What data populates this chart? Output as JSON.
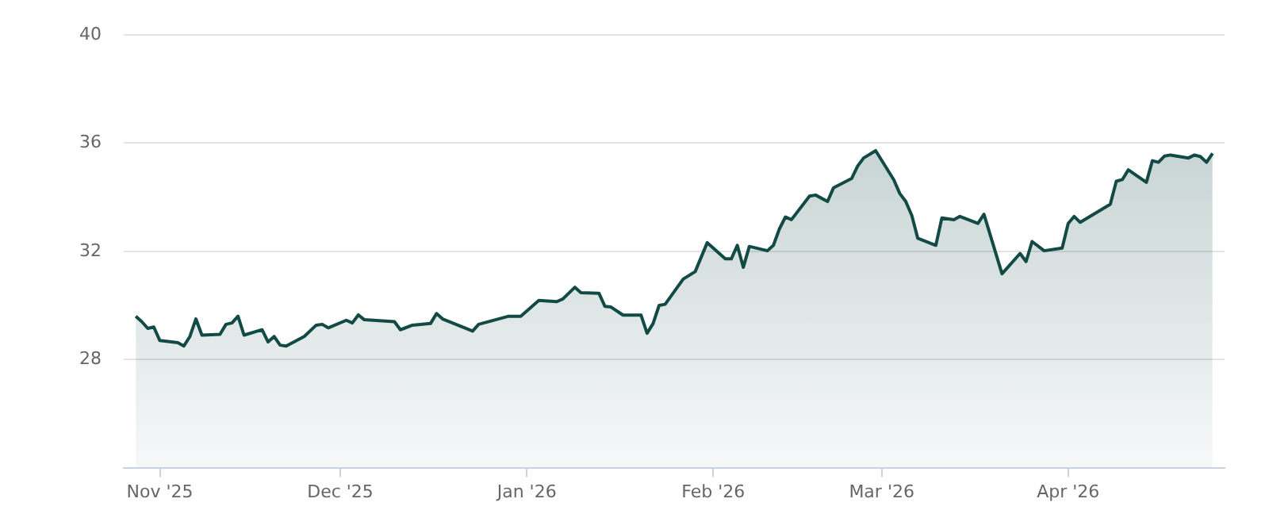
{
  "chart_data": {
    "type": "area",
    "x": [
      "2025-10-28",
      "2025-10-29",
      "2025-10-30",
      "2025-10-31",
      "2025-11-01",
      "2025-11-04",
      "2025-11-05",
      "2025-11-06",
      "2025-11-07",
      "2025-11-08",
      "2025-11-11",
      "2025-11-12",
      "2025-11-13",
      "2025-11-14",
      "2025-11-15",
      "2025-11-18",
      "2025-11-19",
      "2025-11-20",
      "2025-11-21",
      "2025-11-22",
      "2025-11-25",
      "2025-11-27",
      "2025-11-28",
      "2025-11-29",
      "2025-12-02",
      "2025-12-03",
      "2025-12-04",
      "2025-12-05",
      "2025-12-10",
      "2025-12-11",
      "2025-12-13",
      "2025-12-16",
      "2025-12-17",
      "2025-12-18",
      "2025-12-23",
      "2025-12-24",
      "2025-12-29",
      "2025-12-31",
      "2026-01-03",
      "2026-01-06",
      "2026-01-07",
      "2026-01-09",
      "2026-01-10",
      "2026-01-13",
      "2026-01-14",
      "2026-01-15",
      "2026-01-17",
      "2026-01-20",
      "2026-01-21",
      "2026-01-22",
      "2026-01-23",
      "2026-01-24",
      "2026-01-27",
      "2026-01-29",
      "2026-01-31",
      "2026-02-03",
      "2026-02-04",
      "2026-02-05",
      "2026-02-06",
      "2026-02-07",
      "2026-02-10",
      "2026-02-11",
      "2026-02-12",
      "2026-02-13",
      "2026-02-14",
      "2026-02-17",
      "2026-02-18",
      "2026-02-20",
      "2026-02-21",
      "2026-02-24",
      "2026-02-25",
      "2026-02-26",
      "2026-02-28",
      "2026-03-03",
      "2026-03-04",
      "2026-03-05",
      "2026-03-06",
      "2026-03-07",
      "2026-03-10",
      "2026-03-11",
      "2026-03-13",
      "2026-03-14",
      "2026-03-17",
      "2026-03-18",
      "2026-03-21",
      "2026-03-24",
      "2026-03-25",
      "2026-03-26",
      "2026-03-28",
      "2026-03-31",
      "2026-04-01",
      "2026-04-02",
      "2026-04-03",
      "2026-04-08",
      "2026-04-09",
      "2026-04-10",
      "2026-04-11",
      "2026-04-14",
      "2026-04-15",
      "2026-04-16",
      "2026-04-17",
      "2026-04-18",
      "2026-04-21",
      "2026-04-22",
      "2026-04-23",
      "2026-04-24",
      "2026-04-25"
    ],
    "series": [
      {
        "color": "#124a45",
        "values": [
          29.6,
          29.4,
          29.15,
          29.2,
          28.7,
          28.62,
          28.5,
          28.85,
          29.5,
          28.9,
          28.93,
          29.3,
          29.35,
          29.6,
          28.9,
          29.1,
          28.65,
          28.85,
          28.53,
          28.5,
          28.85,
          29.27,
          29.3,
          29.17,
          29.45,
          29.35,
          29.65,
          29.47,
          29.4,
          29.1,
          29.27,
          29.33,
          29.7,
          29.5,
          29.05,
          29.3,
          29.6,
          29.6,
          30.18,
          30.14,
          30.24,
          30.67,
          30.47,
          30.45,
          29.96,
          29.94,
          29.64,
          29.64,
          28.97,
          29.33,
          30.0,
          30.04,
          30.97,
          31.25,
          32.32,
          31.72,
          31.72,
          32.22,
          31.41,
          32.18,
          32.02,
          32.22,
          32.83,
          33.27,
          33.17,
          34.04,
          34.08,
          33.84,
          34.35,
          34.69,
          35.15,
          35.45,
          35.72,
          34.65,
          34.14,
          33.84,
          33.33,
          32.48,
          32.22,
          33.23,
          33.17,
          33.29,
          33.03,
          33.37,
          31.17,
          31.92,
          31.62,
          32.36,
          32.02,
          32.12,
          33.03,
          33.29,
          33.07,
          33.74,
          34.59,
          34.65,
          35.01,
          34.55,
          35.35,
          35.29,
          35.52,
          35.56,
          35.45,
          35.56,
          35.5,
          35.29,
          35.62
        ]
      }
    ],
    "xlim": [
      "2025-10-26",
      "2026-04-27"
    ],
    "xticks": [
      {
        "value": "2025-11-01",
        "label": "Nov '25"
      },
      {
        "value": "2025-12-01",
        "label": "Dec '25"
      },
      {
        "value": "2026-01-01",
        "label": "Jan '26"
      },
      {
        "value": "2026-02-01",
        "label": "Feb '26"
      },
      {
        "value": "2026-03-01",
        "label": "Mar '26"
      },
      {
        "value": "2026-04-01",
        "label": "Apr '26"
      }
    ],
    "ylim": [
      24,
      40
    ],
    "yticks": [
      28,
      32,
      36,
      40
    ],
    "grid": "y",
    "legend": false
  }
}
